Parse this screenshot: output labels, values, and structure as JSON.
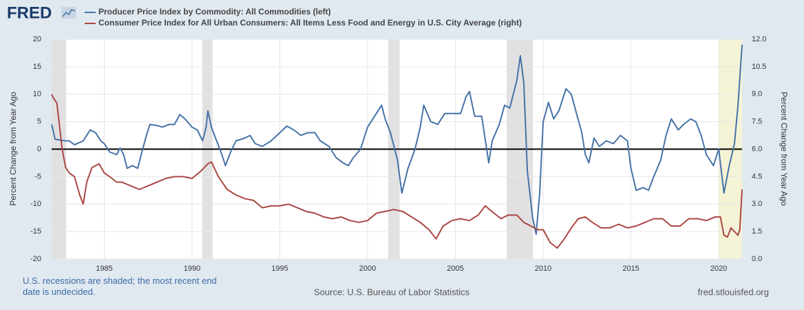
{
  "header": {
    "logo": "FRED"
  },
  "chart_data": {
    "type": "line",
    "y_label": "Percent Change from Year Ago",
    "y2_label": "Percent Change from Year Ago",
    "note": "U.S. recessions are shaded; the most recent end date is undecided.",
    "source": "Source: U.S. Bureau of Labor Statistics",
    "site": "fred.stlouisfed.org",
    "xlim": [
      1982,
      2021.33
    ],
    "xticks": [
      1985,
      1990,
      1995,
      2000,
      2005,
      2010,
      2015,
      2020
    ],
    "ylim": [
      -20,
      20
    ],
    "yticks": [
      -20,
      -15,
      -10,
      -5,
      0,
      5,
      10,
      15,
      20
    ],
    "y2lim": [
      0,
      12
    ],
    "y2ticks": [
      {
        "value": 0,
        "label": "0.0"
      },
      {
        "value": 1.5,
        "label": "1.5"
      },
      {
        "value": 3,
        "label": "3.0"
      },
      {
        "value": 4.5,
        "label": "4.5"
      },
      {
        "value": 6,
        "label": "6.0"
      },
      {
        "value": 7.5,
        "label": "7.5"
      },
      {
        "value": 9,
        "label": "9.0"
      },
      {
        "value": 10.5,
        "label": "10.5"
      },
      {
        "value": 12,
        "label": "12.0"
      }
    ],
    "grid": true,
    "zero_line": true,
    "recessions": [
      {
        "start": 1982,
        "end": 1982.83,
        "color": "#e1e1e1"
      },
      {
        "start": 1990.58,
        "end": 1991.17,
        "color": "#e1e1e1"
      },
      {
        "start": 2001.17,
        "end": 2001.83,
        "color": "#e1e1e1"
      },
      {
        "start": 2007.92,
        "end": 2009.42,
        "color": "#e1e1e1"
      },
      {
        "start": 2020.0,
        "end": 2021.33,
        "color": "#f5f3d6"
      }
    ],
    "series": [
      {
        "name": "Producer Price Index by Commodity: All Commodities (left)",
        "color": "#4572a7",
        "axis": "y",
        "x": [
          1982.0,
          1982.2,
          1982.8,
          1983.0,
          1983.3,
          1983.8,
          1984.0,
          1984.2,
          1984.5,
          1984.8,
          1985.0,
          1985.3,
          1985.7,
          1985.9,
          1986.1,
          1986.3,
          1986.6,
          1986.9,
          1987.1,
          1987.4,
          1987.6,
          1988.0,
          1988.3,
          1988.7,
          1989.0,
          1989.3,
          1989.6,
          1990.0,
          1990.3,
          1990.6,
          1990.8,
          1990.9,
          1991.1,
          1991.4,
          1991.7,
          1991.9,
          1992.2,
          1992.5,
          1993.0,
          1993.3,
          1993.6,
          1994.0,
          1994.5,
          1995.0,
          1995.4,
          1995.8,
          1996.2,
          1996.6,
          1997.0,
          1997.3,
          1997.8,
          1998.2,
          1998.6,
          1998.9,
          1999.2,
          1999.6,
          2000.0,
          2000.4,
          2000.8,
          2001.0,
          2001.3,
          2001.7,
          2001.95,
          2002.3,
          2002.7,
          2003.0,
          2003.2,
          2003.6,
          2004.0,
          2004.4,
          2004.9,
          2005.3,
          2005.6,
          2005.8,
          2006.1,
          2006.5,
          2006.9,
          2007.1,
          2007.5,
          2007.8,
          2008.1,
          2008.5,
          2008.7,
          2008.9,
          2009.1,
          2009.4,
          2009.6,
          2009.8,
          2010.0,
          2010.3,
          2010.6,
          2010.9,
          2011.3,
          2011.6,
          2011.9,
          2012.2,
          2012.4,
          2012.6,
          2012.9,
          2013.2,
          2013.6,
          2014.0,
          2014.4,
          2014.8,
          2015.0,
          2015.3,
          2015.7,
          2016.0,
          2016.3,
          2016.7,
          2017.0,
          2017.3,
          2017.7,
          2018.0,
          2018.4,
          2018.7,
          2019.0,
          2019.3,
          2019.7,
          2020.0,
          2020.3,
          2020.6,
          2020.9,
          2021.1,
          2021.33
        ],
        "values": [
          4.5,
          1.8,
          1.5,
          1.5,
          0.8,
          1.5,
          2.5,
          3.5,
          3.0,
          1.5,
          1.0,
          -0.5,
          -1.0,
          0.2,
          -1.0,
          -3.5,
          -3.0,
          -3.5,
          -1.0,
          2.5,
          4.5,
          4.3,
          4.0,
          4.5,
          4.5,
          6.3,
          5.5,
          4.0,
          3.5,
          1.5,
          4.0,
          7.0,
          4.0,
          1.5,
          -1.0,
          -3.0,
          -0.5,
          1.5,
          2.0,
          2.5,
          1.0,
          0.5,
          1.5,
          3.0,
          4.2,
          3.5,
          2.5,
          3.0,
          3.0,
          1.5,
          0.5,
          -1.5,
          -2.5,
          -3.0,
          -1.5,
          0,
          4.0,
          6.0,
          8.0,
          5.5,
          3.0,
          -2.0,
          -8.0,
          -3.5,
          0,
          4.0,
          8.0,
          5.0,
          4.5,
          6.5,
          6.5,
          6.5,
          9.5,
          10.5,
          6.0,
          6.0,
          -2.5,
          1.5,
          4.5,
          8.0,
          7.5,
          12.5,
          17.0,
          12.0,
          -4.0,
          -12.5,
          -15.5,
          -8.0,
          5.0,
          8.5,
          5.5,
          7.0,
          11.0,
          10.0,
          6.5,
          3.0,
          -1.0,
          -2.5,
          2.0,
          0.5,
          1.5,
          1.0,
          2.5,
          1.5,
          -3.5,
          -7.5,
          -7.0,
          -7.5,
          -5.0,
          -2.0,
          2.5,
          5.5,
          3.5,
          4.5,
          5.5,
          5.0,
          2.5,
          -1.0,
          -3.0,
          0,
          -8.0,
          -3.0,
          1.0,
          8.0,
          19.0
        ]
      },
      {
        "name": "Consumer Price Index for All Urban Consumers: All Items Less Food and Energy in U.S. City Average (right)",
        "color": "#aa4643",
        "axis": "y2",
        "x": [
          1982.0,
          1982.1,
          1982.3,
          1982.6,
          1982.8,
          1983.0,
          1983.3,
          1983.6,
          1983.8,
          1984.0,
          1984.3,
          1984.7,
          1985.0,
          1985.3,
          1985.7,
          1986.0,
          1986.5,
          1987.0,
          1987.5,
          1988.0,
          1988.5,
          1989.0,
          1989.5,
          1990.0,
          1990.5,
          1990.9,
          1991.1,
          1991.5,
          1992.0,
          1992.5,
          1993.0,
          1993.5,
          1994.0,
          1994.5,
          1995.0,
          1995.5,
          1996.0,
          1996.5,
          1997.0,
          1997.5,
          1998.0,
          1998.5,
          1999.0,
          1999.5,
          2000.0,
          2000.5,
          2001.0,
          2001.5,
          2002.0,
          2002.5,
          2003.0,
          2003.5,
          2003.9,
          2004.3,
          2004.8,
          2005.3,
          2005.8,
          2006.3,
          2006.7,
          2007.2,
          2007.6,
          2008.0,
          2008.5,
          2008.9,
          2009.3,
          2009.7,
          2010.0,
          2010.4,
          2010.8,
          2011.2,
          2011.6,
          2012.0,
          2012.4,
          2012.8,
          2013.3,
          2013.8,
          2014.3,
          2014.8,
          2015.3,
          2015.8,
          2016.3,
          2016.8,
          2017.3,
          2017.8,
          2018.3,
          2018.8,
          2019.3,
          2019.8,
          2020.1,
          2020.3,
          2020.5,
          2020.7,
          2021.1,
          2021.2,
          2021.33
        ],
        "values": [
          9.0,
          8.8,
          8.5,
          6.0,
          5.0,
          4.7,
          4.5,
          3.5,
          3.0,
          4.2,
          5.0,
          5.2,
          4.7,
          4.5,
          4.2,
          4.2,
          4.0,
          3.8,
          4.0,
          4.2,
          4.4,
          4.5,
          4.5,
          4.4,
          4.8,
          5.2,
          5.3,
          4.5,
          3.8,
          3.5,
          3.3,
          3.2,
          2.8,
          2.9,
          2.9,
          3.0,
          2.8,
          2.6,
          2.5,
          2.3,
          2.2,
          2.3,
          2.1,
          2.0,
          2.1,
          2.5,
          2.6,
          2.7,
          2.6,
          2.3,
          2.0,
          1.6,
          1.1,
          1.8,
          2.1,
          2.2,
          2.1,
          2.4,
          2.9,
          2.5,
          2.2,
          2.4,
          2.4,
          2.0,
          1.8,
          1.6,
          1.6,
          0.9,
          0.6,
          1.1,
          1.7,
          2.2,
          2.3,
          2.0,
          1.7,
          1.7,
          1.9,
          1.7,
          1.8,
          2.0,
          2.2,
          2.2,
          1.8,
          1.8,
          2.2,
          2.2,
          2.1,
          2.3,
          2.3,
          1.3,
          1.2,
          1.7,
          1.3,
          1.6,
          3.8
        ]
      }
    ]
  }
}
